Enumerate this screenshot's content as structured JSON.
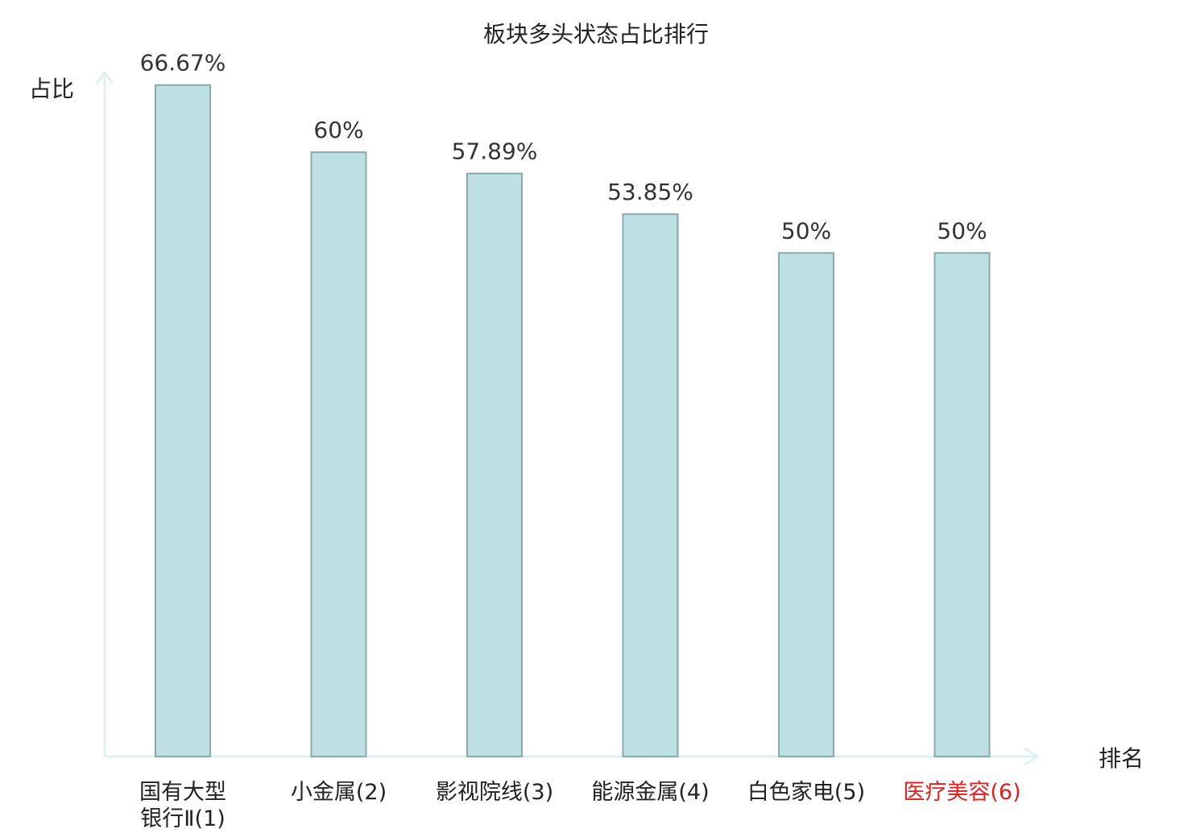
{
  "chart_data": {
    "type": "bar",
    "title": "板块多头状态占比排行",
    "ylabel": "占比",
    "xlabel": "排名",
    "ylim": [
      0,
      70
    ],
    "grid": false,
    "categories": [
      [
        "国有大型",
        "银行Ⅱ(1)"
      ],
      [
        "小金属(2)"
      ],
      [
        "影视院线(3)"
      ],
      [
        "能源金属(4)"
      ],
      [
        "白色家电(5)"
      ],
      [
        "医疗美容(6)"
      ]
    ],
    "values": [
      66.67,
      60,
      57.89,
      53.85,
      50,
      50
    ],
    "value_labels": [
      "66.67%",
      "60%",
      "57.89%",
      "53.85%",
      "50%",
      "50%"
    ],
    "highlight_index": 5,
    "colors": {
      "bar_fill": "#bde1e3",
      "bar_stroke": "#8aa9aa",
      "axis": "#dff1ef",
      "highlight_text": "#e02020"
    }
  }
}
